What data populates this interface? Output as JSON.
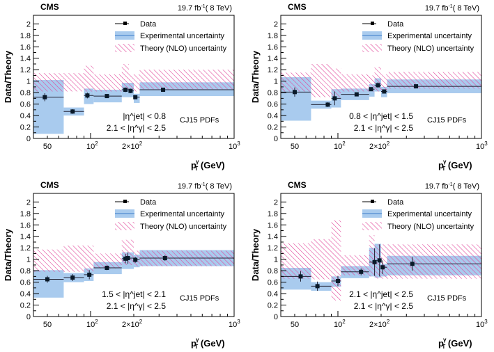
{
  "chart_data": [
    {
      "type": "scatter",
      "experiment": "CMS",
      "lumi": "19.7 fb",
      "lumi_sup": "-1",
      "energy": "( 8 TeV)",
      "region_jet": "|η^jet| < 0.8",
      "region_gamma": "2.1 < |η^γ| < 2.5",
      "pdf": "CJ15 PDFs",
      "points": [
        [
          48,
          0.72,
          0.07,
          40,
          65
        ],
        [
          75,
          0.47,
          0.04,
          65,
          90
        ],
        [
          95,
          0.75,
          0.05,
          90,
          105
        ],
        [
          130,
          0.74,
          0.02,
          105,
          165
        ],
        [
          175,
          0.85,
          0.04,
          165,
          185
        ],
        [
          190,
          0.83,
          0.04,
          185,
          200
        ],
        [
          205,
          0.72,
          0.02,
          200,
          220
        ],
        [
          320,
          0.85,
          0.02,
          220,
          1000
        ]
      ],
      "exp": [
        [
          40,
          65,
          0.08,
          1.02
        ],
        [
          65,
          90,
          0.4,
          0.54
        ],
        [
          90,
          105,
          0.6,
          0.87
        ],
        [
          105,
          165,
          0.63,
          0.85
        ],
        [
          165,
          200,
          0.72,
          0.97
        ],
        [
          200,
          220,
          0.62,
          0.78
        ],
        [
          220,
          1000,
          0.74,
          0.98
        ]
      ],
      "theory": [
        [
          40,
          90,
          0.82,
          1.14
        ],
        [
          90,
          105,
          0.82,
          1.27
        ],
        [
          105,
          165,
          0.82,
          1.12
        ],
        [
          165,
          185,
          0.82,
          1.3
        ],
        [
          185,
          220,
          0.82,
          1.12
        ],
        [
          220,
          1000,
          0.86,
          1.2
        ]
      ]
    },
    {
      "type": "scatter",
      "experiment": "CMS",
      "lumi": "19.7 fb",
      "lumi_sup": "-1",
      "energy": "( 8 TeV)",
      "region_jet": "0.8 < |η^jet| < 1.5",
      "region_gamma": "2.1 < |η^γ| < 2.5",
      "pdf": "CJ15 PDFs",
      "points": [
        [
          50,
          0.81,
          0.08,
          40,
          65
        ],
        [
          85,
          0.59,
          0.04,
          65,
          90
        ],
        [
          95,
          0.7,
          0.12,
          90,
          105
        ],
        [
          135,
          0.77,
          0.02,
          105,
          165
        ],
        [
          170,
          0.86,
          0.03,
          165,
          180
        ],
        [
          190,
          0.93,
          0.05,
          180,
          200
        ],
        [
          210,
          0.82,
          0.03,
          200,
          220
        ],
        [
          350,
          0.91,
          0.03,
          220,
          1000
        ]
      ],
      "exp": [
        [
          40,
          65,
          0.31,
          1.07
        ],
        [
          65,
          90,
          0.52,
          0.66
        ],
        [
          90,
          105,
          0.54,
          0.86
        ],
        [
          105,
          165,
          0.67,
          0.87
        ],
        [
          165,
          180,
          0.73,
          0.95
        ],
        [
          180,
          200,
          0.82,
          1.05
        ],
        [
          200,
          220,
          0.72,
          0.9
        ],
        [
          220,
          1000,
          0.79,
          1.03
        ]
      ],
      "theory": [
        [
          40,
          65,
          0.82,
          1.15
        ],
        [
          65,
          90,
          0.72,
          1.3
        ],
        [
          90,
          105,
          0.72,
          1.22
        ],
        [
          105,
          165,
          0.82,
          1.12
        ],
        [
          165,
          180,
          0.82,
          1.1
        ],
        [
          180,
          200,
          0.82,
          1.25
        ],
        [
          200,
          220,
          0.84,
          1.12
        ],
        [
          220,
          1000,
          0.87,
          1.16
        ]
      ]
    },
    {
      "type": "scatter",
      "experiment": "CMS",
      "lumi": "19.7 fb",
      "lumi_sup": "-1",
      "energy": "( 8 TeV)",
      "region_jet": "1.5 < |η^jet| < 2.1",
      "region_gamma": "2.1 < |η^γ| < 2.5",
      "pdf": "CJ15 PDFs",
      "points": [
        [
          50,
          0.65,
          0.06,
          40,
          65
        ],
        [
          75,
          0.68,
          0.06,
          65,
          90
        ],
        [
          98,
          0.73,
          0.08,
          90,
          105
        ],
        [
          130,
          0.85,
          0.04,
          105,
          165
        ],
        [
          175,
          1.01,
          0.08,
          165,
          180
        ],
        [
          182,
          1.02,
          0.1,
          180,
          200
        ],
        [
          205,
          0.99,
          0.05,
          200,
          220
        ],
        [
          330,
          1.02,
          0.05,
          220,
          1000
        ]
      ],
      "exp": [
        [
          40,
          65,
          0.33,
          0.81
        ],
        [
          65,
          90,
          0.6,
          0.76
        ],
        [
          90,
          105,
          0.62,
          0.84
        ],
        [
          105,
          165,
          0.74,
          0.95
        ],
        [
          165,
          200,
          0.83,
          1.12
        ],
        [
          200,
          220,
          0.86,
          1.08
        ],
        [
          220,
          1000,
          0.88,
          1.16
        ]
      ],
      "theory": [
        [
          40,
          65,
          0.78,
          1.17
        ],
        [
          65,
          105,
          0.78,
          1.24
        ],
        [
          105,
          165,
          0.84,
          1.1
        ],
        [
          165,
          200,
          0.9,
          1.34
        ],
        [
          200,
          1000,
          0.88,
          1.15
        ]
      ]
    },
    {
      "type": "scatter",
      "experiment": "CMS",
      "lumi": "19.7 fb",
      "lumi_sup": "-1",
      "energy": "( 8 TeV)",
      "region_jet": "2.1 < |η^jet| < 2.5",
      "region_gamma": "2.1 < |η^γ| < 2.5",
      "pdf": "CJ15 PDFs",
      "points": [
        [
          55,
          0.7,
          0.09,
          40,
          65
        ],
        [
          72,
          0.53,
          0.08,
          65,
          90
        ],
        [
          100,
          0.62,
          0.09,
          90,
          105
        ],
        [
          145,
          0.78,
          0.06,
          105,
          165
        ],
        [
          180,
          0.95,
          0.24,
          165,
          185
        ],
        [
          195,
          0.98,
          0.28,
          185,
          200
        ],
        [
          205,
          0.86,
          0.12,
          200,
          220
        ],
        [
          330,
          0.92,
          0.12,
          220,
          1000
        ]
      ],
      "exp": [
        [
          40,
          65,
          0.47,
          0.85
        ],
        [
          65,
          90,
          0.45,
          0.6
        ],
        [
          90,
          105,
          0.52,
          0.7
        ],
        [
          105,
          165,
          0.67,
          0.88
        ],
        [
          165,
          180,
          0.7,
          1.2
        ],
        [
          180,
          200,
          0.68,
          1.27
        ],
        [
          200,
          220,
          0.7,
          0.92
        ],
        [
          220,
          1000,
          0.72,
          1.06
        ]
      ],
      "theory": [
        [
          40,
          65,
          0.66,
          1.28
        ],
        [
          65,
          90,
          0.65,
          1.35
        ],
        [
          90,
          105,
          0.28,
          1.68
        ],
        [
          105,
          165,
          0.72,
          1.07
        ],
        [
          165,
          180,
          0.7,
          1.42
        ],
        [
          180,
          1000,
          0.66,
          1.26
        ]
      ]
    }
  ],
  "axes": {
    "ylabel": "Data/Theory",
    "xlabel": "p",
    "xlabel_sup": "γ",
    "xlabel_sub": "T",
    "xlabel_unit": " (GeV)",
    "xlim": [
      40,
      1000
    ],
    "ylim": [
      0,
      2.15
    ],
    "yticks": [
      "0",
      "0.2",
      "0.4",
      "0.6",
      "0.8",
      "1",
      "1.2",
      "1.4",
      "1.6",
      "1.8",
      "2"
    ],
    "xticks": [
      "50",
      "10",
      "2",
      "×10",
      "10"
    ],
    "xtick_sup": "2",
    "xtick_sup3": "3"
  },
  "legend": {
    "data": "Data",
    "exp": "Experimental uncertainty",
    "theory": "Theory (NLO) uncertainty"
  },
  "colors": {
    "exp": "#a9cbee",
    "theory": "#e0479a",
    "exp_line": "#3a7bc8"
  }
}
